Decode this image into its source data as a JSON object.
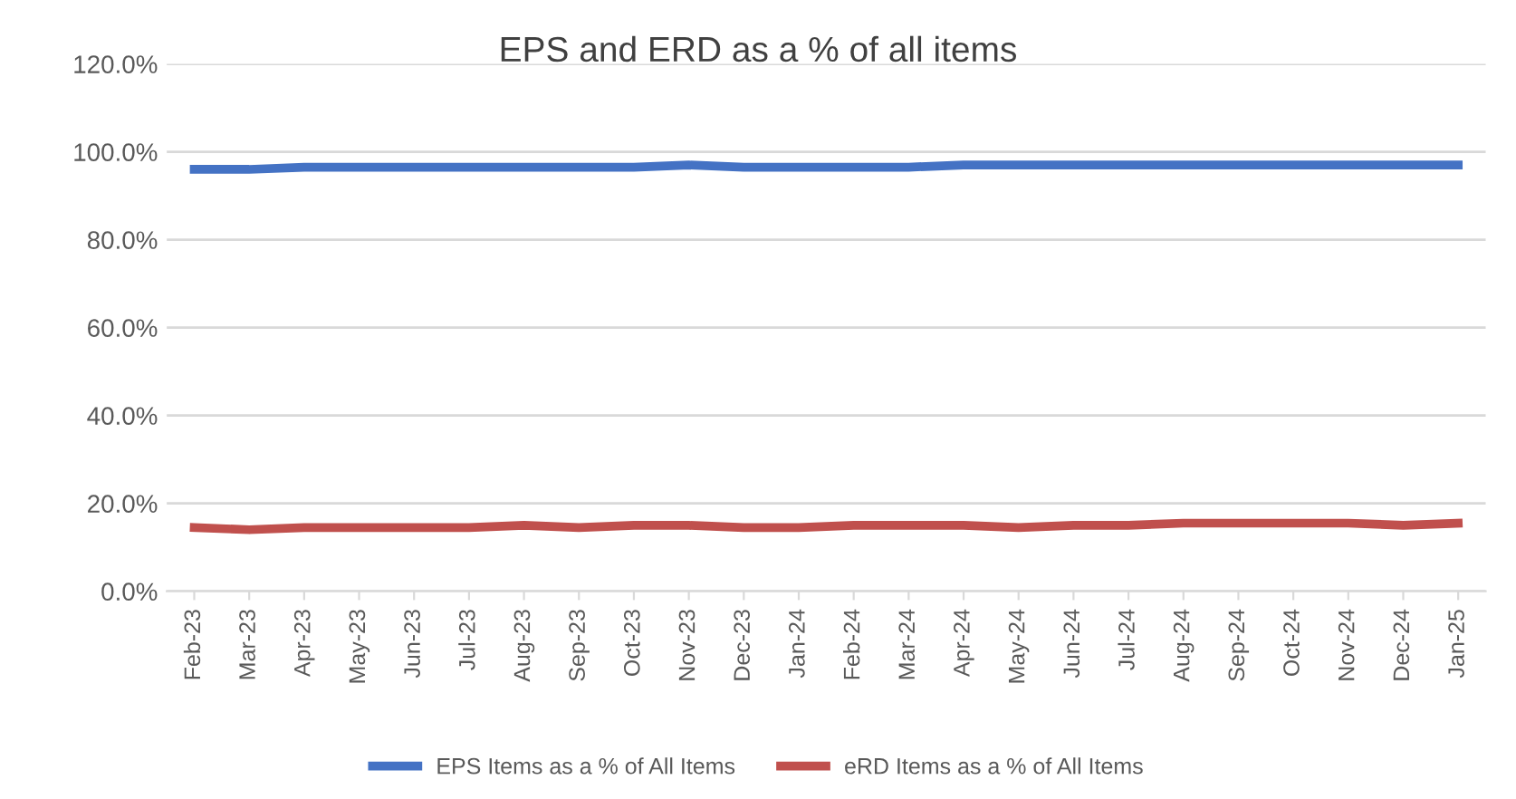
{
  "chart_data": {
    "type": "line",
    "title": "EPS and ERD as a % of all items",
    "categories": [
      "Feb-23",
      "Mar-23",
      "Apr-23",
      "May-23",
      "Jun-23",
      "Jul-23",
      "Aug-23",
      "Sep-23",
      "Oct-23",
      "Nov-23",
      "Dec-23",
      "Jan-24",
      "Feb-24",
      "Mar-24",
      "Apr-24",
      "May-24",
      "Jun-24",
      "Jul-24",
      "Aug-24",
      "Sep-24",
      "Oct-24",
      "Nov-24",
      "Dec-24",
      "Jan-25"
    ],
    "series": [
      {
        "name": "EPS Items as a % of All Items",
        "color": "#4472c4",
        "values": [
          96,
          96,
          96.5,
          96.5,
          96.5,
          96.5,
          96.5,
          96.5,
          96.5,
          97,
          96.5,
          96.5,
          96.5,
          96.5,
          97,
          97,
          97,
          97,
          97,
          97,
          97,
          97,
          97,
          97
        ]
      },
      {
        "name": "eRD Items as a % of All Items",
        "color": "#c0504d",
        "values": [
          14.5,
          14,
          14.5,
          14.5,
          14.5,
          14.5,
          15,
          14.5,
          15,
          15,
          14.5,
          14.5,
          15,
          15,
          15,
          14.5,
          15,
          15,
          15.5,
          15.5,
          15.5,
          15.5,
          15,
          15.5
        ]
      }
    ],
    "ylim": [
      0,
      120
    ],
    "yticks": [
      {
        "value": 0,
        "label": "0.0%"
      },
      {
        "value": 20,
        "label": "20.0%"
      },
      {
        "value": 40,
        "label": "40.0%"
      },
      {
        "value": 60,
        "label": "60.0%"
      },
      {
        "value": 80,
        "label": "80.0%"
      },
      {
        "value": 100,
        "label": "100.0%"
      },
      {
        "value": 120,
        "label": "120.0%"
      }
    ],
    "grid": "y",
    "legend": "bottom",
    "line_style": "solid",
    "marker": "none"
  }
}
